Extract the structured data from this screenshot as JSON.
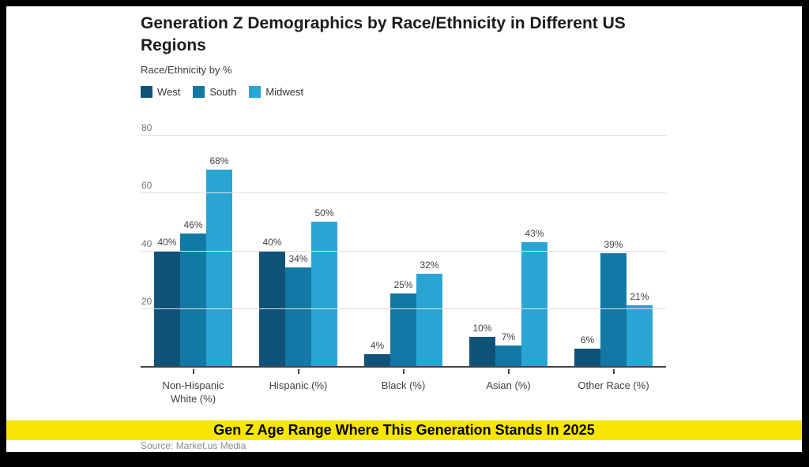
{
  "header": {
    "title": "Generation Z Demographics by Race/Ethnicity in Different US Regions",
    "subtitle": "Race/Ethnicity by %"
  },
  "chart_data": {
    "type": "bar",
    "categories": [
      "Non-Hispanic White (%)",
      "Hispanic (%)",
      "Black (%)",
      "Asian (%)",
      "Other Race (%)"
    ],
    "series": [
      {
        "name": "West",
        "color": "#0f5379",
        "values": [
          40,
          40,
          4,
          10,
          6
        ]
      },
      {
        "name": "South",
        "color": "#1478a5",
        "values": [
          46,
          34,
          25,
          7,
          39
        ]
      },
      {
        "name": "Midwest",
        "color": "#2aa5d3",
        "values": [
          68,
          50,
          32,
          43,
          21
        ]
      }
    ],
    "value_suffix": "%",
    "yticks": [
      80,
      60,
      40,
      20
    ],
    "ylim": [
      0,
      80
    ],
    "grid": true,
    "legend_position": "top",
    "title": "Generation Z Demographics by Race/Ethnicity in Different US Regions",
    "xlabel": "",
    "ylabel": "Race/Ethnicity by %"
  },
  "banner": {
    "text": "Gen Z Age Range Where This Generation Stands In 2025",
    "background": "#f8e500"
  },
  "source": {
    "text": "Source: Market.us Media"
  },
  "colors": {
    "frame": "#000000",
    "gridline": "#e0e0e0",
    "axis": "#424242"
  }
}
